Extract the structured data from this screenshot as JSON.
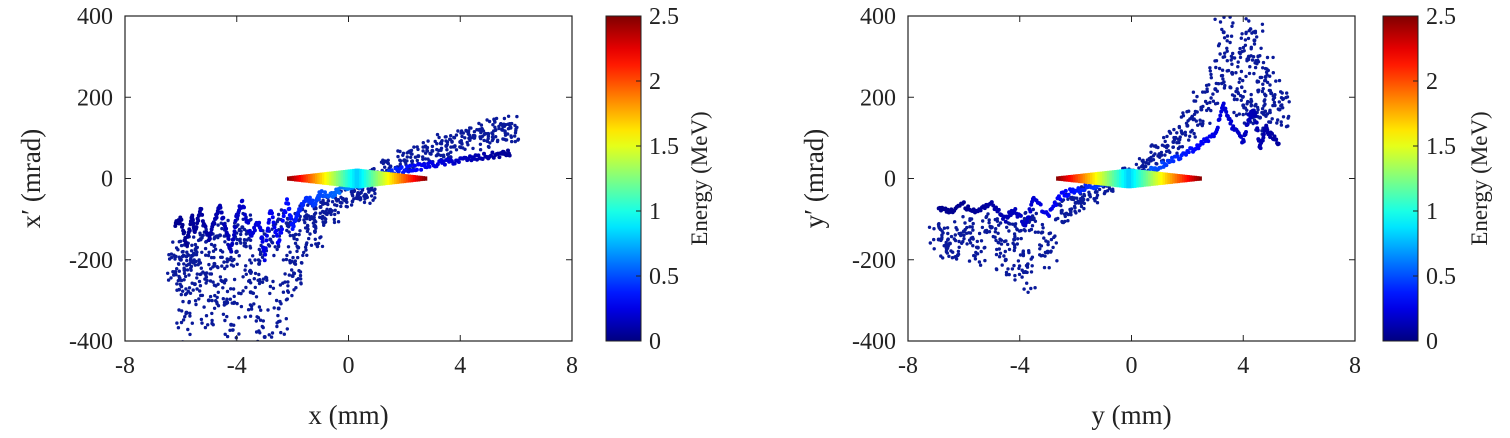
{
  "chart_data": [
    {
      "type": "scatter",
      "xlabel": "x (mm)",
      "ylabel": "x′ (mrad)",
      "xlim": [
        -8,
        8
      ],
      "ylim": [
        -400,
        400
      ],
      "xticks": [
        "-8",
        "-4",
        "0",
        "4",
        "8"
      ],
      "yticks": [
        "-400",
        "-200",
        "0",
        "200",
        "400"
      ],
      "grid": false,
      "colorbar": {
        "label": "Energy (MeV)",
        "range": [
          0,
          2.5
        ],
        "ticks": [
          "0",
          "0.5",
          "1",
          "1.5",
          "2",
          "2.5"
        ],
        "colormap": "jet"
      },
      "series": [
        {
          "marker_color": "#0a1a9a",
          "points_low_energy_approx": [
            [
              -6.2,
              -230
            ],
            [
              -6.0,
              -200
            ],
            [
              -5.8,
              -330
            ],
            [
              -5.6,
              -190
            ],
            [
              -5.5,
              -260
            ],
            [
              -5.3,
              -150
            ],
            [
              -5.0,
              -300
            ],
            [
              -4.8,
              -210
            ],
            [
              -4.6,
              -140
            ],
            [
              -4.4,
              -250
            ],
            [
              -4.2,
              -360
            ],
            [
              -4.0,
              -180
            ],
            [
              -3.8,
              -120
            ],
            [
              -3.5,
              -280
            ],
            [
              -3.2,
              -210
            ],
            [
              -3.0,
              -390
            ],
            [
              -2.8,
              -150
            ],
            [
              -2.5,
              -320
            ],
            [
              -2.2,
              -110
            ],
            [
              -2.0,
              -240
            ],
            [
              -1.8,
              -170
            ],
            [
              -1.5,
              -90
            ],
            [
              -1.2,
              -130
            ],
            [
              -1.0,
              -70
            ],
            [
              -0.6,
              -80
            ],
            [
              -0.2,
              -50
            ],
            [
              0.2,
              -30
            ],
            [
              0.6,
              -40
            ],
            [
              1.0,
              10
            ],
            [
              1.5,
              30
            ],
            [
              2.0,
              45
            ],
            [
              2.5,
              55
            ],
            [
              3.0,
              68
            ],
            [
              3.5,
              80
            ],
            [
              4.0,
              90
            ],
            [
              4.5,
              100
            ],
            [
              5.0,
              110
            ],
            [
              5.5,
              120
            ],
            [
              5.8,
              125
            ]
          ]
        }
      ],
      "core": {
        "x_range": [
          -2.2,
          2.8
        ],
        "y": 0,
        "energy_range": [
          0.8,
          2.5
        ]
      }
    },
    {
      "type": "scatter",
      "xlabel": "y (mm)",
      "ylabel": "y′ (mrad)",
      "xlim": [
        -8,
        8
      ],
      "ylim": [
        -400,
        400
      ],
      "xticks": [
        "-8",
        "-4",
        "0",
        "4",
        "8"
      ],
      "yticks": [
        "-400",
        "-200",
        "0",
        "200",
        "400"
      ],
      "grid": false,
      "colorbar": {
        "label": "Energy (MeV)",
        "range": [
          0,
          2.5
        ],
        "ticks": [
          "0",
          "0.5",
          "1",
          "1.5",
          "2",
          "2.5"
        ],
        "colormap": "jet"
      },
      "series": [
        {
          "marker_color": "#0a1a9a",
          "points_low_energy_approx": [
            [
              -6.9,
              -150
            ],
            [
              -6.5,
              -160
            ],
            [
              -6.0,
              -130
            ],
            [
              -5.5,
              -170
            ],
            [
              -5.0,
              -120
            ],
            [
              -4.5,
              -200
            ],
            [
              -4.2,
              -150
            ],
            [
              -3.8,
              -230
            ],
            [
              -3.5,
              -100
            ],
            [
              -3.0,
              -180
            ],
            [
              -2.5,
              -80
            ],
            [
              -2.0,
              -60
            ],
            [
              -1.5,
              -40
            ],
            [
              -1.0,
              -20
            ],
            [
              0.0,
              10
            ],
            [
              0.5,
              30
            ],
            [
              1.0,
              60
            ],
            [
              1.5,
              90
            ],
            [
              2.0,
              130
            ],
            [
              2.5,
              170
            ],
            [
              3.0,
              220
            ],
            [
              3.3,
              360
            ],
            [
              3.6,
              260
            ],
            [
              4.0,
              180
            ],
            [
              4.2,
              300
            ],
            [
              4.4,
              340
            ],
            [
              4.6,
              150
            ],
            [
              4.8,
              250
            ],
            [
              5.0,
              210
            ],
            [
              5.3,
              170
            ]
          ]
        }
      ],
      "core": {
        "x_range": [
          -2.7,
          2.5
        ],
        "y": 0,
        "energy_range": [
          0.8,
          2.5
        ]
      }
    }
  ]
}
